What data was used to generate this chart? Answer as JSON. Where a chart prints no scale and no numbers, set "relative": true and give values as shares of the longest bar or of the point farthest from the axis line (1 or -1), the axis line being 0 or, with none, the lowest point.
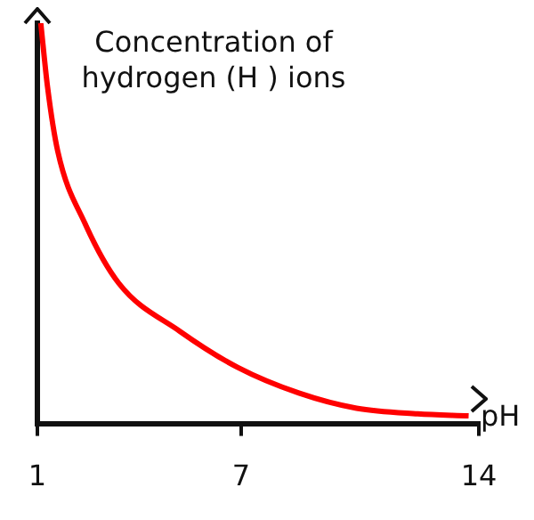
{
  "chart_data": {
    "type": "line",
    "title": "Concentration of hydrogen (H ) ions",
    "xlabel": "pH",
    "relative": true,
    "x": [
      1.1,
      1.3,
      1.6,
      2.4,
      3.4,
      5.2,
      6.9,
      8.7,
      10.4,
      12.2,
      13.7
    ],
    "series": [
      {
        "color": "#ff0000",
        "values": [
          1,
          0.84,
          0.68,
          0.5,
          0.35,
          0.23,
          0.14,
          0.076,
          0.038,
          0.024,
          0.019
        ]
      }
    ],
    "xlim": [
      1,
      14
    ],
    "xticks": [
      1,
      7,
      14
    ],
    "grid": false,
    "legend": false,
    "marker": "none",
    "line_style": "solid"
  }
}
